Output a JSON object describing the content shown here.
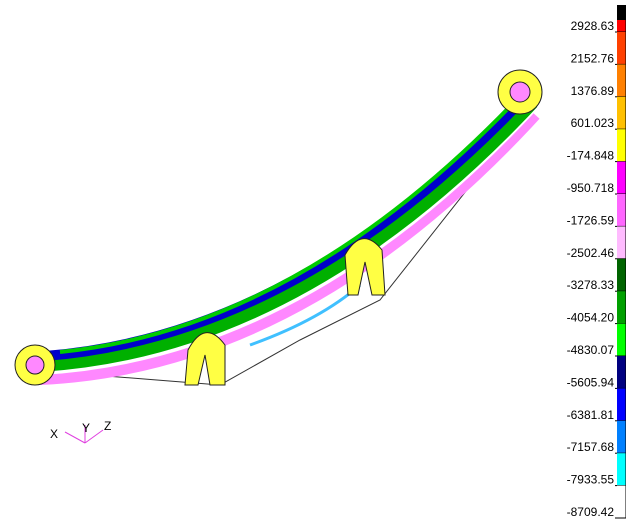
{
  "legend": {
    "top_color": "#000000",
    "labels": [
      "2928.63",
      "2152.76",
      "1376.89",
      "601.023",
      "-174.848",
      "-950.718",
      "-1726.59",
      "-2502.46",
      "-3278.33",
      "-4054.20",
      "-4830.07",
      "-5605.94",
      "-6381.81",
      "-7157.68",
      "-7933.55",
      "-8709.42"
    ],
    "colors": [
      "#ff0000",
      "#ff4000",
      "#ff8000",
      "#ffc000",
      "#ffff00",
      "#ff00ff",
      "#ff66ff",
      "#ffbbff",
      "#006400",
      "#00a000",
      "#00ff00",
      "#000080",
      "#0000ff",
      "#0080ff",
      "#00ffff",
      "#ffffff"
    ]
  },
  "triad": {
    "x": "X",
    "y": "Y",
    "z": "Z"
  }
}
